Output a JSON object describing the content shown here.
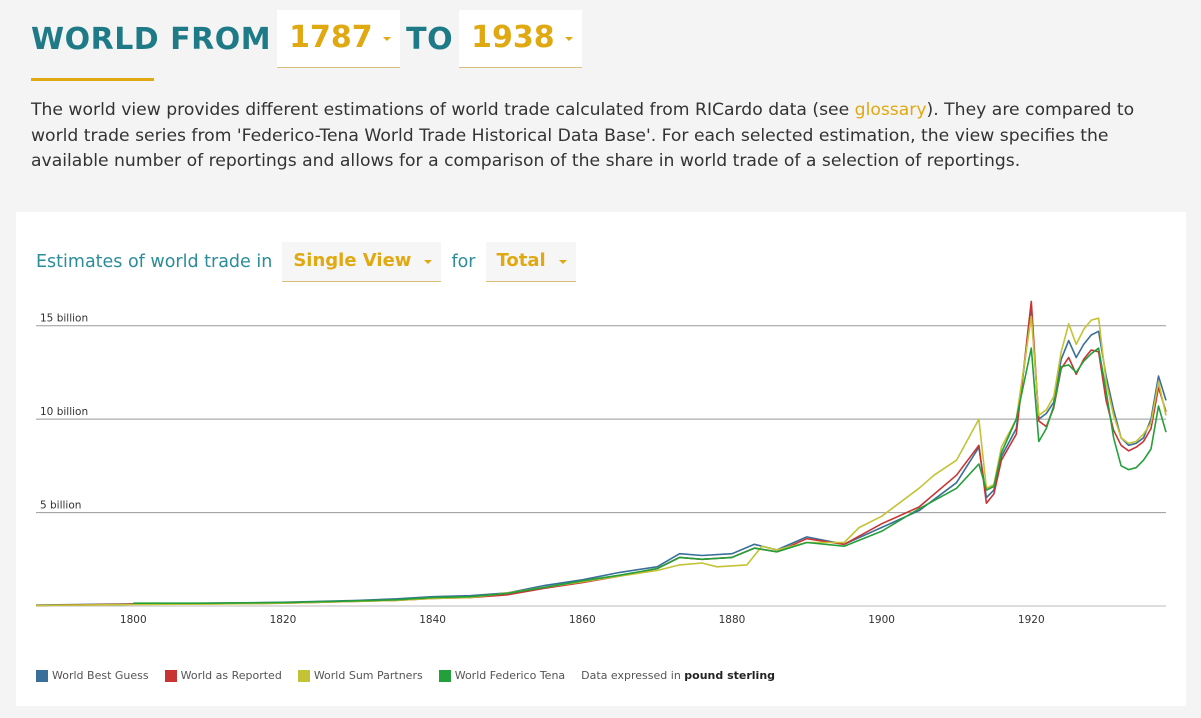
{
  "header": {
    "prefix": "WORLD FROM",
    "from_year": "1787",
    "middle": "TO",
    "to_year": "1938"
  },
  "intro": {
    "text_before": "The world view provides different estimations of world trade calculated from RICardo data (see ",
    "link": "glossary",
    "text_after": "). They are compared to world trade series from 'Federico-Tena World Trade Historical Data Base'. For each selected estimation, the view specifies the available number of reportings and allows for a comparison of the share in world trade of a selection of reportings."
  },
  "controls": {
    "label_before": "Estimates of world trade in",
    "view_select": "Single View",
    "label_for": "for",
    "flow_select": "Total"
  },
  "legend": {
    "note_prefix": "Data expressed in",
    "note_unit": "pound sterling"
  },
  "colors": {
    "best_guess": "#3a6f9a",
    "as_reported": "#c83434",
    "sum_partners": "#c3c335",
    "federico_tena": "#24a03a"
  },
  "chart_data": {
    "type": "line",
    "x_ticks": [
      1800,
      1820,
      1840,
      1860,
      1880,
      1900,
      1920
    ],
    "xlim": [
      1787,
      1938
    ],
    "y_ticks": [
      {
        "value": 5,
        "label": "5 billion"
      },
      {
        "value": 10,
        "label": "10 billion"
      },
      {
        "value": 15,
        "label": "15 billion"
      }
    ],
    "ylim": [
      0,
      16
    ],
    "y_unit": "billion pound sterling",
    "grid": "horizontal",
    "legend_position": "bottom-left",
    "series": [
      {
        "name": "World Best Guess",
        "color": "#3a6f9a",
        "points": [
          [
            1787,
            0.05
          ],
          [
            1800,
            0.12
          ],
          [
            1810,
            0.15
          ],
          [
            1820,
            0.2
          ],
          [
            1830,
            0.3
          ],
          [
            1835,
            0.38
          ],
          [
            1840,
            0.5
          ],
          [
            1845,
            0.55
          ],
          [
            1850,
            0.7
          ],
          [
            1855,
            1.1
          ],
          [
            1860,
            1.4
          ],
          [
            1865,
            1.8
          ],
          [
            1870,
            2.1
          ],
          [
            1873,
            2.8
          ],
          [
            1876,
            2.7
          ],
          [
            1880,
            2.8
          ],
          [
            1883,
            3.3
          ],
          [
            1886,
            3.0
          ],
          [
            1890,
            3.7
          ],
          [
            1895,
            3.3
          ],
          [
            1900,
            4.2
          ],
          [
            1905,
            5.1
          ],
          [
            1910,
            6.6
          ],
          [
            1913,
            8.5
          ],
          [
            1914,
            5.8
          ],
          [
            1915,
            6.2
          ],
          [
            1916,
            8.0
          ],
          [
            1918,
            9.5
          ],
          [
            1920,
            15.8
          ],
          [
            1921,
            10.0
          ],
          [
            1922,
            10.3
          ],
          [
            1923,
            10.9
          ],
          [
            1924,
            13.2
          ],
          [
            1925,
            14.2
          ],
          [
            1926,
            13.3
          ],
          [
            1927,
            14.0
          ],
          [
            1928,
            14.5
          ],
          [
            1929,
            14.7
          ],
          [
            1930,
            12.3
          ],
          [
            1931,
            10.5
          ],
          [
            1932,
            9.0
          ],
          [
            1933,
            8.6
          ],
          [
            1934,
            8.7
          ],
          [
            1935,
            9.0
          ],
          [
            1936,
            10.0
          ],
          [
            1937,
            12.3
          ],
          [
            1938,
            11.0
          ]
        ]
      },
      {
        "name": "World as Reported",
        "color": "#c83434",
        "points": [
          [
            1787,
            0.03
          ],
          [
            1800,
            0.1
          ],
          [
            1810,
            0.12
          ],
          [
            1820,
            0.15
          ],
          [
            1830,
            0.25
          ],
          [
            1835,
            0.3
          ],
          [
            1840,
            0.4
          ],
          [
            1845,
            0.45
          ],
          [
            1850,
            0.6
          ],
          [
            1855,
            0.95
          ],
          [
            1860,
            1.25
          ],
          [
            1865,
            1.6
          ],
          [
            1870,
            2.0
          ],
          [
            1873,
            2.6
          ],
          [
            1876,
            2.5
          ],
          [
            1880,
            2.6
          ],
          [
            1883,
            3.1
          ],
          [
            1886,
            2.9
          ],
          [
            1890,
            3.6
          ],
          [
            1895,
            3.3
          ],
          [
            1900,
            4.4
          ],
          [
            1905,
            5.3
          ],
          [
            1910,
            7.0
          ],
          [
            1913,
            8.6
          ],
          [
            1914,
            5.5
          ],
          [
            1915,
            6.0
          ],
          [
            1916,
            7.8
          ],
          [
            1918,
            9.2
          ],
          [
            1920,
            16.3
          ],
          [
            1921,
            9.9
          ],
          [
            1922,
            9.6
          ],
          [
            1923,
            10.6
          ],
          [
            1924,
            12.7
          ],
          [
            1925,
            13.3
          ],
          [
            1926,
            12.4
          ],
          [
            1927,
            13.2
          ],
          [
            1928,
            13.7
          ],
          [
            1929,
            13.6
          ],
          [
            1930,
            11.0
          ],
          [
            1931,
            9.4
          ],
          [
            1932,
            8.6
          ],
          [
            1933,
            8.3
          ],
          [
            1934,
            8.5
          ],
          [
            1935,
            8.8
          ],
          [
            1936,
            9.5
          ],
          [
            1937,
            11.7
          ],
          [
            1938,
            10.4
          ]
        ]
      },
      {
        "name": "World Sum Partners",
        "color": "#c3c335",
        "points": [
          [
            1787,
            0.03
          ],
          [
            1800,
            0.08
          ],
          [
            1810,
            0.1
          ],
          [
            1820,
            0.15
          ],
          [
            1830,
            0.25
          ],
          [
            1835,
            0.3
          ],
          [
            1840,
            0.4
          ],
          [
            1845,
            0.45
          ],
          [
            1850,
            0.7
          ],
          [
            1855,
            1.0
          ],
          [
            1860,
            1.3
          ],
          [
            1865,
            1.6
          ],
          [
            1870,
            1.9
          ],
          [
            1873,
            2.2
          ],
          [
            1876,
            2.3
          ],
          [
            1878,
            2.1
          ],
          [
            1882,
            2.2
          ],
          [
            1884,
            3.2
          ],
          [
            1886,
            3.0
          ],
          [
            1890,
            3.4
          ],
          [
            1895,
            3.4
          ],
          [
            1897,
            4.2
          ],
          [
            1900,
            4.8
          ],
          [
            1905,
            6.3
          ],
          [
            1907,
            7.0
          ],
          [
            1910,
            7.8
          ],
          [
            1913,
            10.0
          ],
          [
            1914,
            6.3
          ],
          [
            1915,
            6.5
          ],
          [
            1916,
            8.5
          ],
          [
            1918,
            10.0
          ],
          [
            1920,
            15.5
          ],
          [
            1921,
            10.2
          ],
          [
            1922,
            10.5
          ],
          [
            1923,
            11.2
          ],
          [
            1924,
            13.6
          ],
          [
            1925,
            15.1
          ],
          [
            1926,
            14.0
          ],
          [
            1927,
            14.8
          ],
          [
            1928,
            15.3
          ],
          [
            1929,
            15.4
          ],
          [
            1930,
            12.0
          ],
          [
            1931,
            10.2
          ],
          [
            1932,
            9.0
          ],
          [
            1933,
            8.7
          ],
          [
            1934,
            8.8
          ],
          [
            1935,
            9.2
          ],
          [
            1936,
            9.8
          ],
          [
            1937,
            12.0
          ],
          [
            1938,
            10.2
          ]
        ]
      },
      {
        "name": "World Federico Tena",
        "color": "#24a03a",
        "points": [
          [
            1800,
            0.15
          ],
          [
            1810,
            0.15
          ],
          [
            1820,
            0.18
          ],
          [
            1830,
            0.28
          ],
          [
            1835,
            0.33
          ],
          [
            1840,
            0.45
          ],
          [
            1845,
            0.5
          ],
          [
            1850,
            0.68
          ],
          [
            1855,
            1.0
          ],
          [
            1860,
            1.35
          ],
          [
            1865,
            1.65
          ],
          [
            1870,
            2.0
          ],
          [
            1873,
            2.6
          ],
          [
            1876,
            2.5
          ],
          [
            1880,
            2.6
          ],
          [
            1883,
            3.1
          ],
          [
            1886,
            2.9
          ],
          [
            1890,
            3.4
          ],
          [
            1895,
            3.2
          ],
          [
            1900,
            4.0
          ],
          [
            1905,
            5.2
          ],
          [
            1910,
            6.3
          ],
          [
            1913,
            7.6
          ],
          [
            1914,
            6.2
          ],
          [
            1915,
            6.4
          ],
          [
            1916,
            8.2
          ],
          [
            1918,
            10.0
          ],
          [
            1920,
            13.8
          ],
          [
            1921,
            8.8
          ],
          [
            1922,
            9.5
          ],
          [
            1923,
            10.7
          ],
          [
            1924,
            12.8
          ],
          [
            1925,
            12.9
          ],
          [
            1926,
            12.5
          ],
          [
            1927,
            13.1
          ],
          [
            1928,
            13.5
          ],
          [
            1929,
            13.8
          ],
          [
            1930,
            11.5
          ],
          [
            1931,
            9.0
          ],
          [
            1932,
            7.5
          ],
          [
            1933,
            7.3
          ],
          [
            1934,
            7.4
          ],
          [
            1935,
            7.8
          ],
          [
            1936,
            8.4
          ],
          [
            1937,
            10.7
          ],
          [
            1938,
            9.3
          ]
        ]
      }
    ]
  }
}
